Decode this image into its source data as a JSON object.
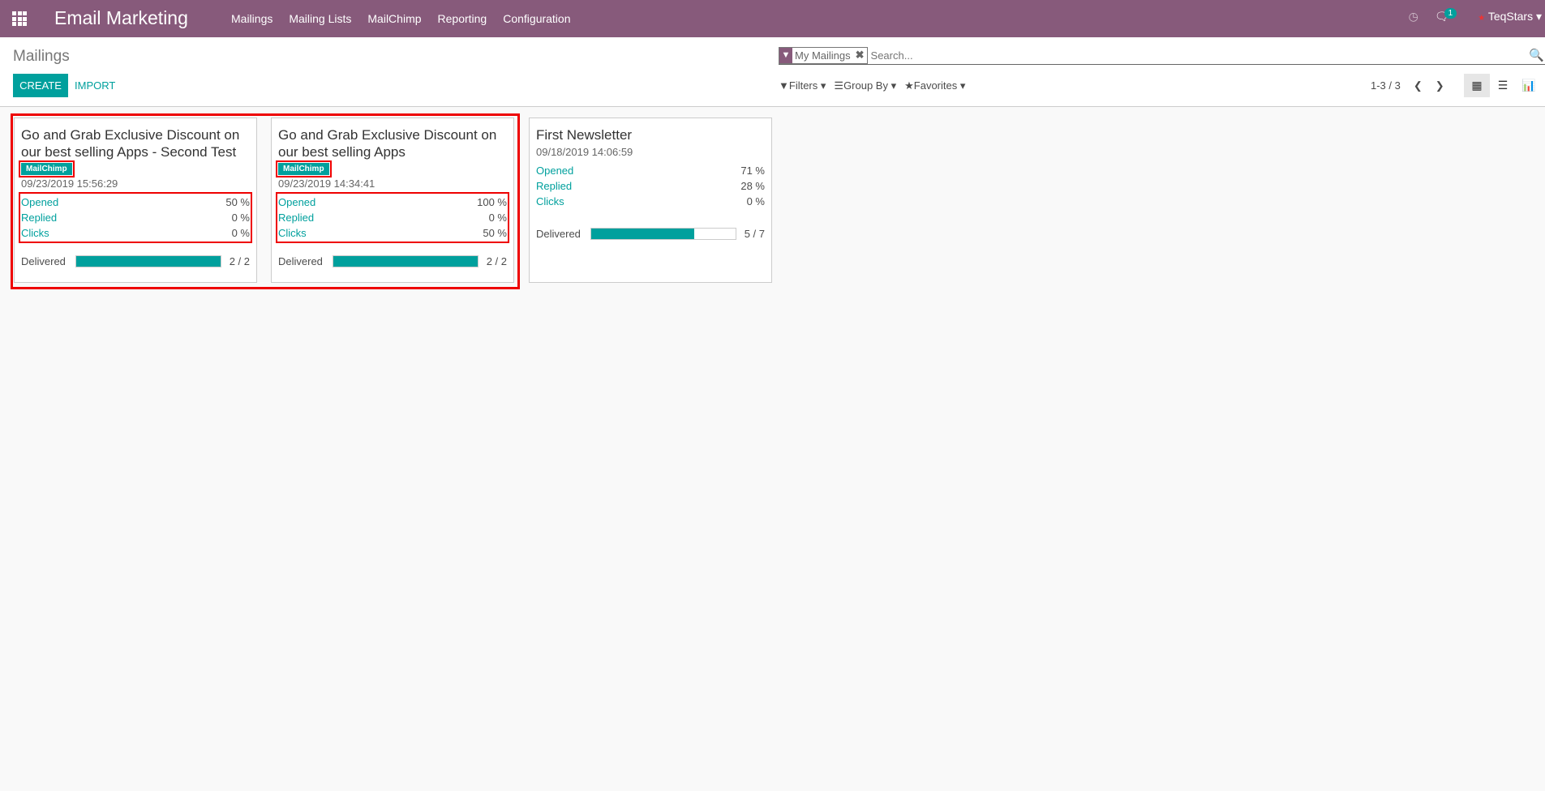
{
  "navbar": {
    "app_title": "Email Marketing",
    "menu": [
      "Mailings",
      "Mailing Lists",
      "MailChimp",
      "Reporting",
      "Configuration"
    ],
    "messages_count": "1",
    "user": "TeqStars"
  },
  "control_panel": {
    "title": "Mailings",
    "create_label": "CREATE",
    "import_label": "IMPORT",
    "facet": "My Mailings",
    "search_placeholder": "Search...",
    "filters_label": "Filters",
    "groupby_label": "Group By",
    "favorites_label": "Favorites",
    "pager": "1-3 / 3"
  },
  "colors": {
    "brand": "#875a7b",
    "accent": "#00a09d",
    "highlight": "#ee0000"
  },
  "cards": [
    {
      "title": "Go and Grab Exclusive Discount on our best selling Apps - Second Test",
      "tag": "MailChimp",
      "date": "09/23/2019 15:56:29",
      "stats": [
        {
          "label": "Opened",
          "value": "50 %"
        },
        {
          "label": "Replied",
          "value": "0 %"
        },
        {
          "label": "Clicks",
          "value": "0 %"
        }
      ],
      "delivered_label": "Delivered",
      "delivered": "2 / 2",
      "delivered_pct": 100
    },
    {
      "title": "Go and Grab Exclusive Discount on our best selling Apps",
      "tag": "MailChimp",
      "date": "09/23/2019 14:34:41",
      "stats": [
        {
          "label": "Opened",
          "value": "100 %"
        },
        {
          "label": "Replied",
          "value": "0 %"
        },
        {
          "label": "Clicks",
          "value": "50 %"
        }
      ],
      "delivered_label": "Delivered",
      "delivered": "2 / 2",
      "delivered_pct": 100
    },
    {
      "title": "First Newsletter",
      "date": "09/18/2019 14:06:59",
      "stats": [
        {
          "label": "Opened",
          "value": "71 %"
        },
        {
          "label": "Replied",
          "value": "28 %"
        },
        {
          "label": "Clicks",
          "value": "0 %"
        }
      ],
      "delivered_label": "Delivered",
      "delivered": "5 / 7",
      "delivered_pct": 71.4
    }
  ]
}
